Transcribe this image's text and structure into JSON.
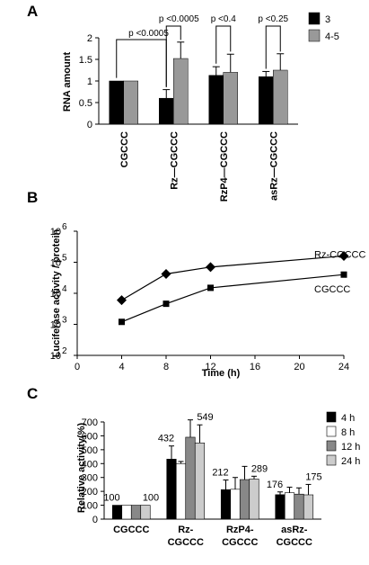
{
  "panels": {
    "A": "A",
    "B": "B",
    "C": "C"
  },
  "chart_data": [
    {
      "type": "bar",
      "ylabel": "RNA amount",
      "ylim": [
        0,
        2
      ],
      "yticks": [
        "0",
        "0.5",
        "1",
        "1.5",
        "2"
      ],
      "categories": [
        "CGCCC",
        "Rz—CGCCC",
        "RzP4—CGCCC",
        "asRz—CGCCC"
      ],
      "series": [
        {
          "name": "3",
          "color": "#000000",
          "values": [
            1.0,
            0.6,
            1.13,
            1.1
          ],
          "errors": [
            0,
            0.2,
            0.2,
            0.12
          ]
        },
        {
          "name": "4-5",
          "color": "#999999",
          "values": [
            1.0,
            1.52,
            1.2,
            1.25
          ],
          "errors": [
            0,
            0.38,
            0.42,
            0.38
          ]
        }
      ],
      "annotations": [
        "p <0.0005",
        "p <0.0005",
        "p <0.4",
        "p <0.25"
      ],
      "legend": "top-right"
    },
    {
      "type": "line",
      "xlabel": "Time (h)",
      "ylabel": "Luciferase activity  / protein",
      "xlim": [
        0,
        24
      ],
      "xticks": [
        "0",
        "4",
        "8",
        "12",
        "16",
        "20",
        "24"
      ],
      "ytick_base": "10",
      "ytick_exponents": [
        "2",
        "3",
        "4",
        "5",
        "6"
      ],
      "yscale": "log",
      "x": [
        4,
        8,
        12,
        24
      ],
      "series": [
        {
          "name": "Rz-CGCCC",
          "marker": "diamond",
          "values": [
            6000,
            42000,
            70000,
            160000
          ]
        },
        {
          "name": "CGCCC",
          "marker": "square",
          "values": [
            1200,
            4600,
            15000,
            40000
          ]
        }
      ]
    },
    {
      "type": "bar",
      "ylabel": "Relative activity(%)",
      "ylim": [
        0,
        700
      ],
      "yticks": [
        "0",
        "100",
        "200",
        "300",
        "400",
        "500",
        "600",
        "700"
      ],
      "categories": [
        "CGCCC",
        "Rz-\nCGCCC",
        "RzP4-\nCGCCC",
        "asRz-\nCGCCC"
      ],
      "series": [
        {
          "name": "4 h",
          "color": "#000000",
          "values": [
            100,
            432,
            212,
            176
          ],
          "errors": [
            0,
            95,
            70,
            20
          ]
        },
        {
          "name": "8 h",
          "color": "#ffffff",
          "values": [
            100,
            400,
            215,
            190
          ],
          "errors": [
            0,
            15,
            85,
            40
          ]
        },
        {
          "name": "12 h",
          "color": "#888888",
          "values": [
            100,
            590,
            285,
            180
          ],
          "errors": [
            0,
            125,
            95,
            45
          ]
        },
        {
          "name": "24 h",
          "color": "#cccccc",
          "values": [
            100,
            549,
            289,
            175
          ],
          "errors": [
            0,
            130,
            20,
            75
          ]
        }
      ],
      "data_labels": [
        {
          "text": "100",
          "category": 0,
          "series": 0
        },
        {
          "text": "100",
          "category": 0,
          "series": 3
        },
        {
          "text": "432",
          "category": 1,
          "series": 0
        },
        {
          "text": "549",
          "category": 1,
          "series": 3
        },
        {
          "text": "212",
          "category": 2,
          "series": 0
        },
        {
          "text": "289",
          "category": 2,
          "series": 3
        },
        {
          "text": "176",
          "category": 3,
          "series": 0
        },
        {
          "text": "175",
          "category": 3,
          "series": 3
        }
      ],
      "legend": "top-right"
    }
  ]
}
